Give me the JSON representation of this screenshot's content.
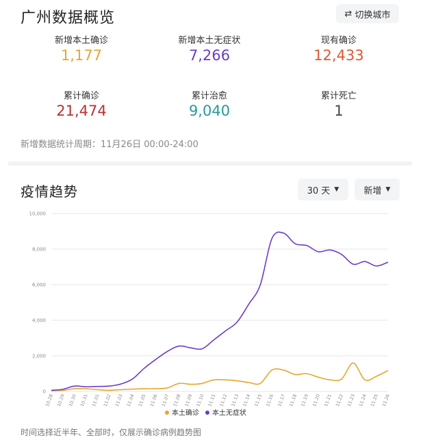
{
  "overview": {
    "title": "广州数据概览",
    "switch_city": "切换城市",
    "stats": [
      {
        "label": "新增本土确诊",
        "value": "1,177",
        "color": "#e8a52e"
      },
      {
        "label": "新增本土无症状",
        "value": "7,266",
        "color": "#6a3cc5"
      },
      {
        "label": "现有确诊",
        "value": "12,433",
        "color": "#e0582f"
      },
      {
        "label": "累计确诊",
        "value": "21,474",
        "color": "#b8322f"
      },
      {
        "label": "累计治愈",
        "value": "9,040",
        "color": "#26999a"
      },
      {
        "label": "累计死亡",
        "value": "1",
        "color": "#444444"
      }
    ],
    "period": "新增数据统计周期：11月26日 00:00-24:00"
  },
  "trend": {
    "title": "疫情趋势",
    "range_select": "30 天",
    "type_select": "新增",
    "footnote": "时间选择近半年、全部时，仅展示确诊病例趋势图"
  },
  "chart_data": {
    "type": "line",
    "x": [
      "10.28",
      "10.29",
      "10.30",
      "10.31",
      "11.01",
      "11.02",
      "11.03",
      "11.04",
      "11.05",
      "11.06",
      "11.07",
      "11.08",
      "11.09",
      "11.10",
      "11.11",
      "11.12",
      "11.13",
      "11.14",
      "11.15",
      "11.16",
      "11.17",
      "11.18",
      "11.19",
      "11.20",
      "11.21",
      "11.22",
      "11.23",
      "11.24",
      "11.25",
      "11.26"
    ],
    "ylim": [
      0,
      10000
    ],
    "yticks": [
      "0",
      "2,000",
      "4,000",
      "6,000",
      "8,000",
      "10,000"
    ],
    "grid": true,
    "legend": "bottom-center",
    "series": [
      {
        "name": "本土确诊",
        "color": "#e8a52e",
        "values": [
          40,
          60,
          150,
          150,
          100,
          60,
          100,
          130,
          150,
          150,
          200,
          450,
          400,
          450,
          650,
          650,
          600,
          500,
          450,
          1200,
          1200,
          950,
          1000,
          800,
          650,
          700,
          1600,
          650,
          850,
          1177
        ]
      },
      {
        "name": "本土无症状",
        "color": "#6a3cc5",
        "values": [
          60,
          120,
          300,
          260,
          280,
          300,
          420,
          700,
          1300,
          1800,
          2250,
          2550,
          2450,
          2400,
          2900,
          3400,
          3900,
          4900,
          6000,
          8600,
          8900,
          8300,
          8200,
          7850,
          7950,
          7700,
          7150,
          7300,
          7050,
          7266
        ]
      }
    ]
  }
}
